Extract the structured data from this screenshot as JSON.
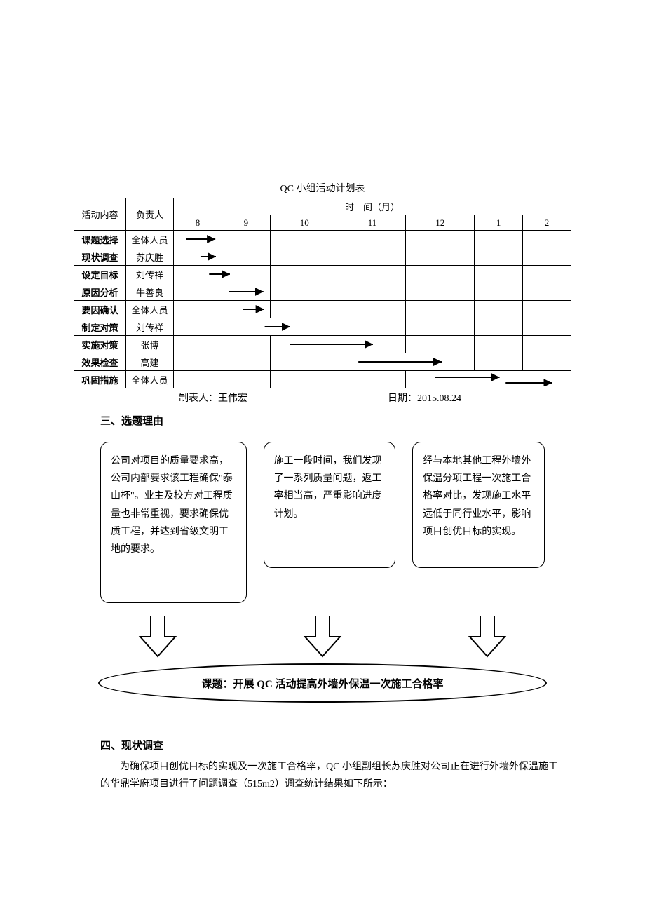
{
  "table": {
    "title": "QC 小组活动计划表",
    "col_activity": "活动内容",
    "col_person": "负责人",
    "col_time": "时　间（月）",
    "months": [
      "8",
      "9",
      "10",
      "11",
      "12",
      "1",
      "2"
    ],
    "rows": [
      {
        "activity": "课题选择",
        "person": "全体人员",
        "arrow_start": 0,
        "arrow_span": 1,
        "offset": 0.2
      },
      {
        "activity": "现状调查",
        "person": "苏庆胜",
        "arrow_start": 0,
        "arrow_span": 1,
        "offset": 0.55
      },
      {
        "activity": "设定目标",
        "person": "刘传祥",
        "arrow_start": 0,
        "arrow_span": 2,
        "offset": 0.7,
        "len": 0.5
      },
      {
        "activity": "原因分析",
        "person": "牛善良",
        "arrow_start": 1,
        "arrow_span": 1,
        "offset": 0.05
      },
      {
        "activity": "要因确认",
        "person": "全体人员",
        "arrow_start": 1,
        "arrow_span": 1,
        "offset": 0.4
      },
      {
        "activity": "制定对策",
        "person": "刘传祥",
        "arrow_start": 1,
        "arrow_span": 2,
        "offset": 0.7,
        "len": 0.5
      },
      {
        "activity": "实施对策",
        "person": "张博",
        "arrow_start": 2,
        "arrow_span": 2,
        "offset": 0.2,
        "len": 1.4
      },
      {
        "activity": "效果检查",
        "person": "高建",
        "arrow_start": 3,
        "arrow_span": 2,
        "offset": 0.2,
        "len": 1.4
      },
      {
        "activity": "巩固措施",
        "person": "全体人员",
        "arrow_start": 4,
        "arrow_span": 3,
        "offset": 0.45,
        "len": 2.3,
        "two": true
      }
    ],
    "foot_left": "制表人：王伟宏",
    "foot_right": "日期：2015.08.24"
  },
  "section3": {
    "head": "三、选题理由",
    "box1": "公司对项目的质量要求高，公司内部要求该工程确保\"泰山杯\"。业主及校方对工程质量也非常重视，要求确保优质工程，并达到省级文明工地的要求。",
    "box2": "施工一段时间，我们发现了一系列质量问题，返工率相当高，严重影响进度计划。",
    "box3": "经与本地其他工程外墙外保温分项工程一次施工合格率对比，发现施工水平远低于同行业水平，影响项目创优目标的实现。",
    "topic": "课题：开展 QC 活动提高外墙外保温一次施工合格率"
  },
  "section4": {
    "head": "四、现状调查",
    "body": "为确保项目创优目标的实现及一次施工合格率，QC 小组副组长苏庆胜对公司正在进行外墙外保温施工的华鼎学府项目进行了问题调查（515m2）调查统计结果如下所示："
  },
  "style": {
    "arrow_stroke": "#000",
    "arrow_stroke_width": 2
  }
}
